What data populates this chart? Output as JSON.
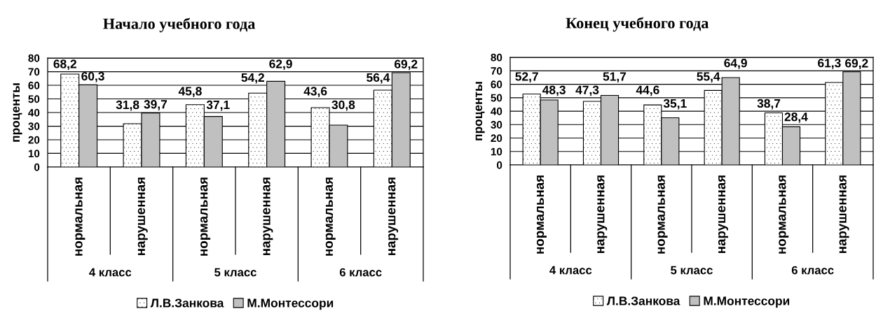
{
  "chart_data": [
    {
      "type": "bar",
      "title": "Начало учебного года",
      "ylabel": "проценты",
      "categories": [
        "нормальная",
        "нарушенная",
        "нормальная",
        "нарушенная",
        "нормальная",
        "нарушенная"
      ],
      "annotations": [
        "4 класс",
        "5 класс",
        "6 класс"
      ],
      "series": [
        {
          "name": "Л.В.Занкова",
          "color": "#ffffff",
          "values": [
            68.2,
            31.8,
            45.8,
            54.2,
            43.6,
            56.4
          ],
          "value_labels": [
            "68,2",
            "31,8",
            "45,8",
            "54,2",
            "43,6",
            "56,4"
          ]
        },
        {
          "name": "М.Монтессори",
          "color": "#c0c0c0",
          "values": [
            60.3,
            39.7,
            37.1,
            62.9,
            30.8,
            69.2
          ],
          "value_labels": [
            "60,3",
            "39,7",
            "37,1",
            "62,9",
            "30,8",
            "69,2"
          ]
        }
      ],
      "ylim": [
        0,
        80
      ],
      "yticks": [
        0,
        10,
        20,
        30,
        40,
        50,
        60,
        70,
        80
      ],
      "grid": "y",
      "legend": "bottom"
    },
    {
      "type": "bar",
      "title": "Конец учебного года",
      "ylabel": "проценты",
      "categories": [
        "нормальная",
        "нарушенная",
        "нормальная",
        "нарушенная",
        "нормальная",
        "нарушенная"
      ],
      "annotations": [
        "4 класс",
        "5 класс",
        "6 класс"
      ],
      "series": [
        {
          "name": "Л.В.Занкова",
          "color": "#ffffff",
          "values": [
            52.7,
            47.3,
            44.6,
            55.4,
            38.7,
            61.3
          ],
          "value_labels": [
            "52,7",
            "47,3",
            "44,6",
            "55,4",
            "38,7",
            "61,3"
          ]
        },
        {
          "name": "М.Монтессори",
          "color": "#c0c0c0",
          "values": [
            48.3,
            51.7,
            35.1,
            64.9,
            28.4,
            69.2
          ],
          "value_labels": [
            "48,3",
            "51,7",
            "35,1",
            "64,9",
            "28,4",
            "69,2"
          ]
        }
      ],
      "ylim": [
        0,
        80
      ],
      "yticks": [
        0,
        10,
        20,
        30,
        40,
        50,
        60,
        70,
        80
      ],
      "grid": "y",
      "legend": "bottom"
    }
  ]
}
